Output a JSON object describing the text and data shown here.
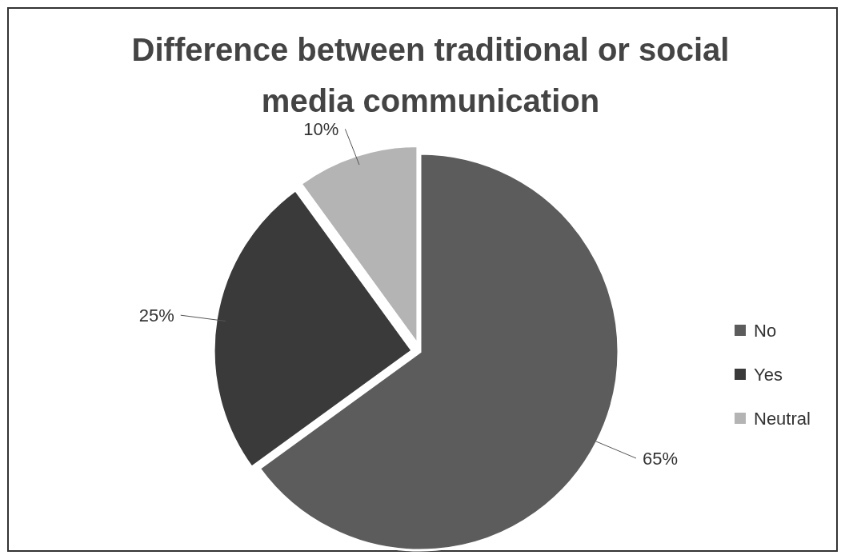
{
  "chart_data": {
    "type": "pie",
    "title": "Difference between traditional or social media communication",
    "categories": [
      "No",
      "Yes",
      "Neutral"
    ],
    "values": [
      65,
      25,
      10
    ],
    "colors": [
      "#5c5c5c",
      "#3a3a3a",
      "#b4b4b4"
    ],
    "value_labels": [
      "65%",
      "25%",
      "10%"
    ],
    "legend": "right"
  }
}
